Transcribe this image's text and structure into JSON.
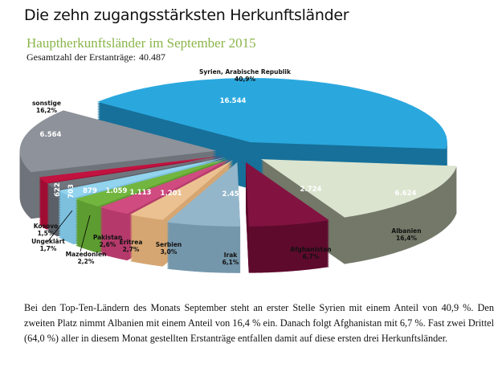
{
  "title": "Die zehn zugangsstärksten Herkunftsländer",
  "chart_data": {
    "type": "pie",
    "title": "Hauptherkunftsländer im September 2015",
    "total_label": "Gesamtzahl der Erstanträge:",
    "total": "40.487",
    "slices": [
      {
        "name": "Syrien, Arabische Republik",
        "value": 16544,
        "value_label": "16.544",
        "percent": "40,9%",
        "color": "#2aa8de",
        "side": "#17709a"
      },
      {
        "name": "sonstige",
        "value": 6564,
        "value_label": "6.564",
        "percent": "16,2%",
        "color": "#8e929a",
        "side": "#6f737a"
      },
      {
        "name": "Kosovo",
        "value": 622,
        "value_label": "622",
        "percent": "1,5%",
        "color": "#c2123f",
        "side": "#a00c33"
      },
      {
        "name": "Ungeklärt",
        "value": 703,
        "value_label": "703",
        "percent": "1,7%",
        "color": "#70767e",
        "side": "#5b6068"
      },
      {
        "name": "Mazedonien",
        "value": 879,
        "value_label": "879",
        "percent": "2,2%",
        "color": "#92d3ee",
        "side": "#7cc0de"
      },
      {
        "name": "Pakistan",
        "value": 1059,
        "value_label": "1.059",
        "percent": "2,6%",
        "color": "#72b63f",
        "side": "#5d9c30"
      },
      {
        "name": "Eritrea",
        "value": 1113,
        "value_label": "1.113",
        "percent": "2,7%",
        "color": "#cf4b80",
        "side": "#b53a6b"
      },
      {
        "name": "Serbien",
        "value": 1201,
        "value_label": "1.201",
        "percent": "3,0%",
        "color": "#ecc191",
        "side": "#d6a672"
      },
      {
        "name": "Irak",
        "value": 2454,
        "value_label": "2.454",
        "percent": "6,1%",
        "color": "#93b6ca",
        "side": "#7597ab"
      },
      {
        "name": "Afghanistan",
        "value": 2724,
        "value_label": "2.724",
        "percent": "6,7%",
        "color": "#821341",
        "side": "#5e0a2d"
      },
      {
        "name": "Albanien",
        "value": 6624,
        "value_label": "6.624",
        "percent": "16,4%",
        "color": "#dbe4cf",
        "side": "#737868"
      }
    ]
  },
  "paragraph": "Bei den Top-Ten-Ländern des Monats September steht an erster Stelle Syrien mit einem Anteil von 40,9 %. Den zweiten Platz nimmt Albanien mit einem Anteil von 16,4 % ein. Danach folgt Afghanistan mit 6,7 %. Fast zwei Drittel (64,0 %) aller in diesem Monat gestellten Erstanträge entfallen damit auf diese ersten drei Herkunftsländer."
}
